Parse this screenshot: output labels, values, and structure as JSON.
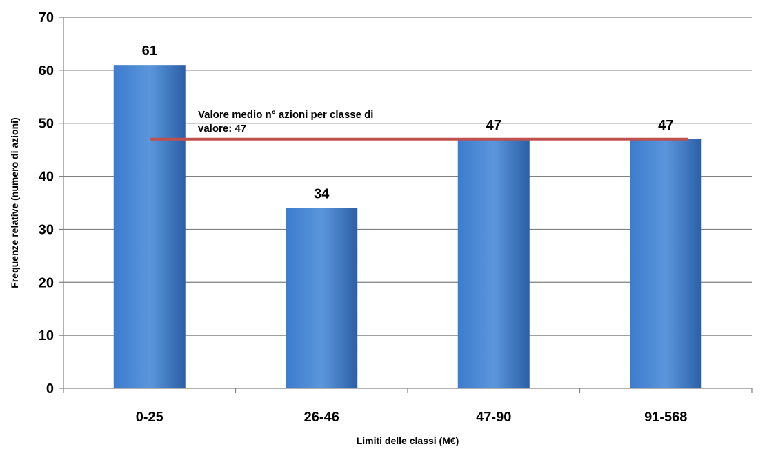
{
  "chart_data": {
    "type": "bar",
    "title": "",
    "xlabel": "Limiti delle classi (M€)",
    "ylabel": "Frequenze relative (numero di azioni)",
    "ylim": [
      0,
      70
    ],
    "yticks": [
      0,
      10,
      20,
      30,
      40,
      50,
      60,
      70
    ],
    "grid": true,
    "legend": "none",
    "categories": [
      "0-25",
      "26-46",
      "47-90",
      "91-568"
    ],
    "values": [
      61,
      34,
      47,
      47
    ],
    "data_labels": [
      "61",
      "34",
      "47",
      "47"
    ],
    "reference_line": {
      "value": 47,
      "label_line1": "Valore medio n° azioni per classe di",
      "label_line2": "valore: 47",
      "color": "#c0504d"
    },
    "colors": {
      "bar_light": "#5b96dc",
      "bar_mid": "#3c7cce",
      "bar_dark": "#2b5fa6",
      "grid": "#808080",
      "axis": "#808080"
    }
  }
}
